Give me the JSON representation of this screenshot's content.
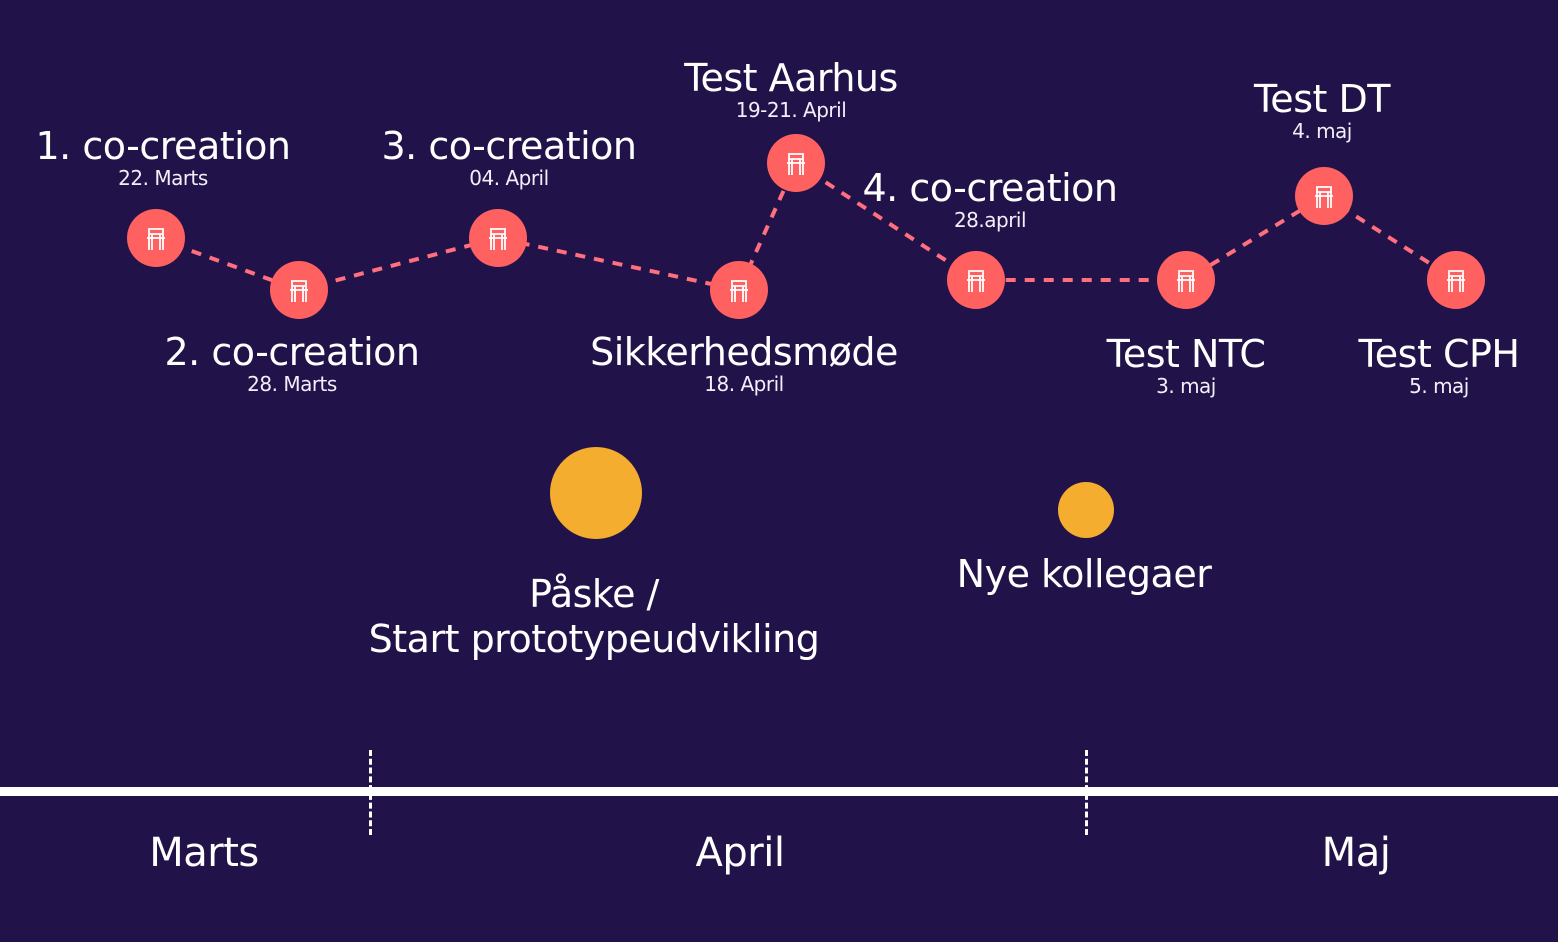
{
  "milestones": [
    {
      "title": "1. co-creation",
      "date": "22. Marts"
    },
    {
      "title": "2. co-creation",
      "date": "28. Marts"
    },
    {
      "title": "3. co-creation",
      "date": "04. April"
    },
    {
      "title": "Sikkerhedsmøde",
      "date": "18. April"
    },
    {
      "title": "Test Aarhus",
      "date": "19-21. April"
    },
    {
      "title": "4. co-creation",
      "date": "28.april"
    },
    {
      "title": "Test NTC",
      "date": "3. maj"
    },
    {
      "title": "Test DT",
      "date": "4. maj"
    },
    {
      "title": "Test CPH",
      "date": "5. maj"
    }
  ],
  "events": [
    {
      "line1": "Påske /",
      "line2": "Start prototypeudvikling"
    },
    {
      "line1": "Nye kollegaer",
      "line2": ""
    }
  ],
  "months": [
    "Marts",
    "April",
    "Maj"
  ],
  "colors": {
    "background": "#21134a",
    "milestone": "#ff6160",
    "connector": "#ff6f7e",
    "event": "#f5ad2f",
    "axis": "#ffffff"
  },
  "icons": {
    "milestone": "chair-icon",
    "event": "circle"
  }
}
